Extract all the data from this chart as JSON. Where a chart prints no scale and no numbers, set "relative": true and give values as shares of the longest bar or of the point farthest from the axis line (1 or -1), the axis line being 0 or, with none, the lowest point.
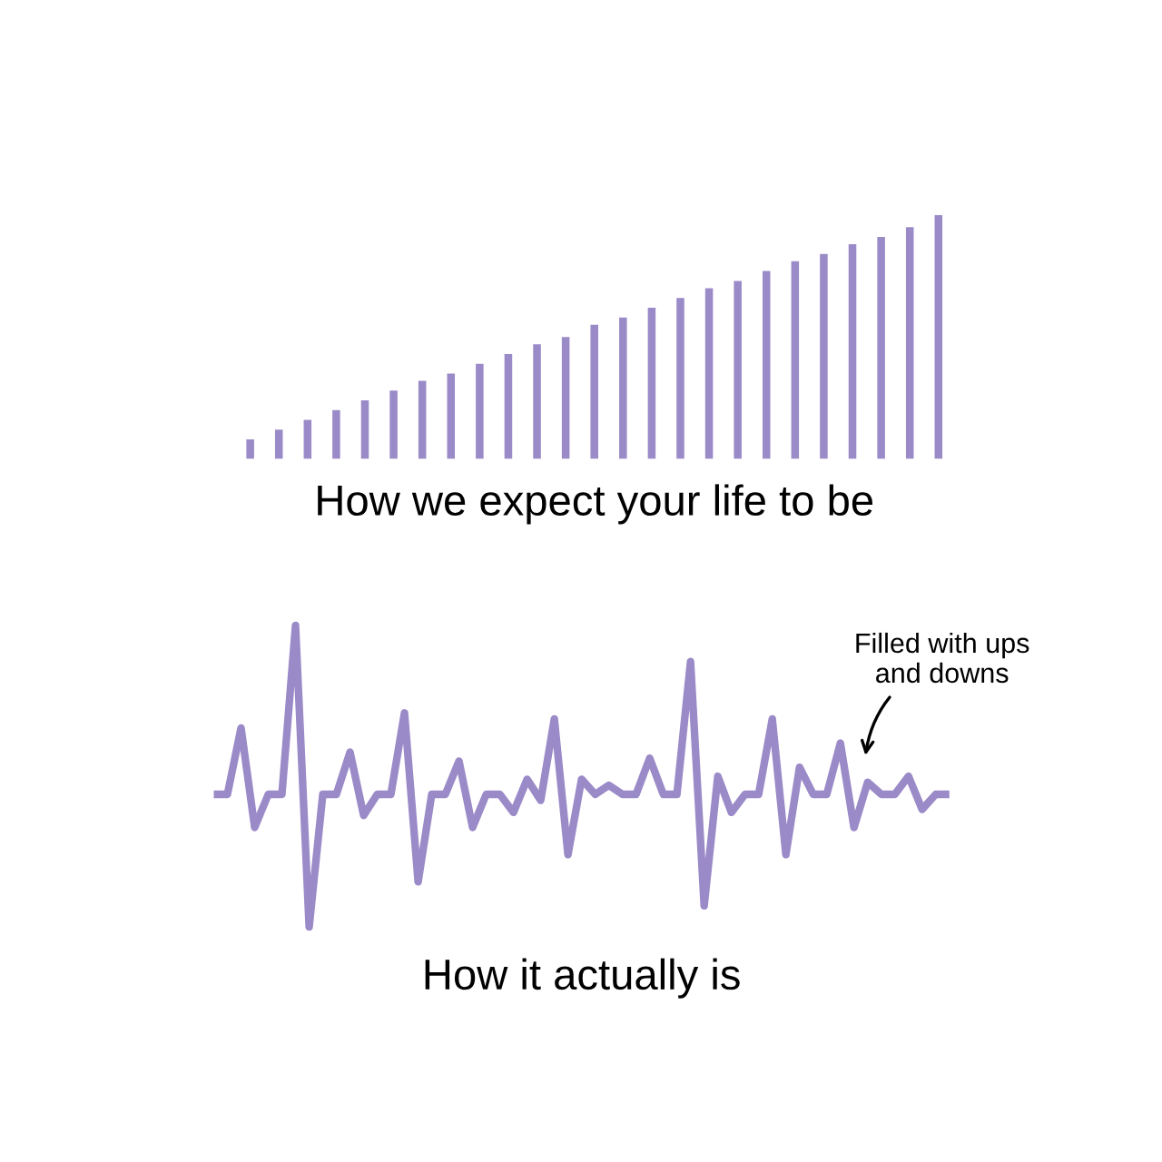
{
  "chart_data": [
    {
      "type": "bar",
      "relative": true,
      "xlabel": "How we expect your life to be",
      "categories": [
        null,
        null,
        null,
        null,
        null,
        null,
        null,
        null,
        null,
        null,
        null,
        null,
        null,
        null,
        null,
        null,
        null,
        null,
        null,
        null,
        null,
        null,
        null,
        null,
        null
      ],
      "series": [
        {
          "color": "#9b8ac8",
          "values": [
            0.08,
            0.12,
            0.16,
            0.2,
            0.24,
            0.28,
            0.32,
            0.35,
            0.39,
            0.43,
            0.47,
            0.5,
            0.55,
            0.58,
            0.62,
            0.66,
            0.7,
            0.73,
            0.77,
            0.81,
            0.84,
            0.88,
            0.91,
            0.95,
            1
          ]
        }
      ],
      "tick_labels": false
    },
    {
      "type": "line",
      "relative": true,
      "xlabel": "How it actually is",
      "line_style": "solid",
      "tick_labels": false,
      "categories": [
        null,
        null,
        null,
        null,
        null,
        null,
        null,
        null,
        null,
        null,
        null,
        null,
        null,
        null,
        null,
        null,
        null,
        null,
        null,
        null,
        null,
        null,
        null,
        null,
        null,
        null,
        null,
        null,
        null,
        null,
        null,
        null,
        null,
        null,
        null,
        null,
        null,
        null,
        null,
        null,
        null,
        null,
        null,
        null,
        null,
        null,
        null,
        null,
        null,
        null,
        null,
        null,
        null,
        null,
        null
      ],
      "series": [
        {
          "color": "#9b8ac8",
          "values": [
            0.44,
            0.44,
            0.66,
            0.33,
            0.44,
            0.44,
            1,
            0,
            0.44,
            0.44,
            0.58,
            0.37,
            0.44,
            0.44,
            0.71,
            0.15,
            0.44,
            0.44,
            0.55,
            0.33,
            0.44,
            0.44,
            0.38,
            0.49,
            0.42,
            0.69,
            0.24,
            0.49,
            0.44,
            0.47,
            0.44,
            0.44,
            0.56,
            0.44,
            0.44,
            0.88,
            0.07,
            0.5,
            0.38,
            0.44,
            0.44,
            0.69,
            0.24,
            0.53,
            0.44,
            0.44,
            0.61,
            0.33,
            0.48,
            0.44,
            0.44,
            0.5,
            0.39,
            0.44,
            0.44
          ]
        }
      ],
      "annotations": [
        "Filled with ups\nand downs"
      ]
    }
  ]
}
